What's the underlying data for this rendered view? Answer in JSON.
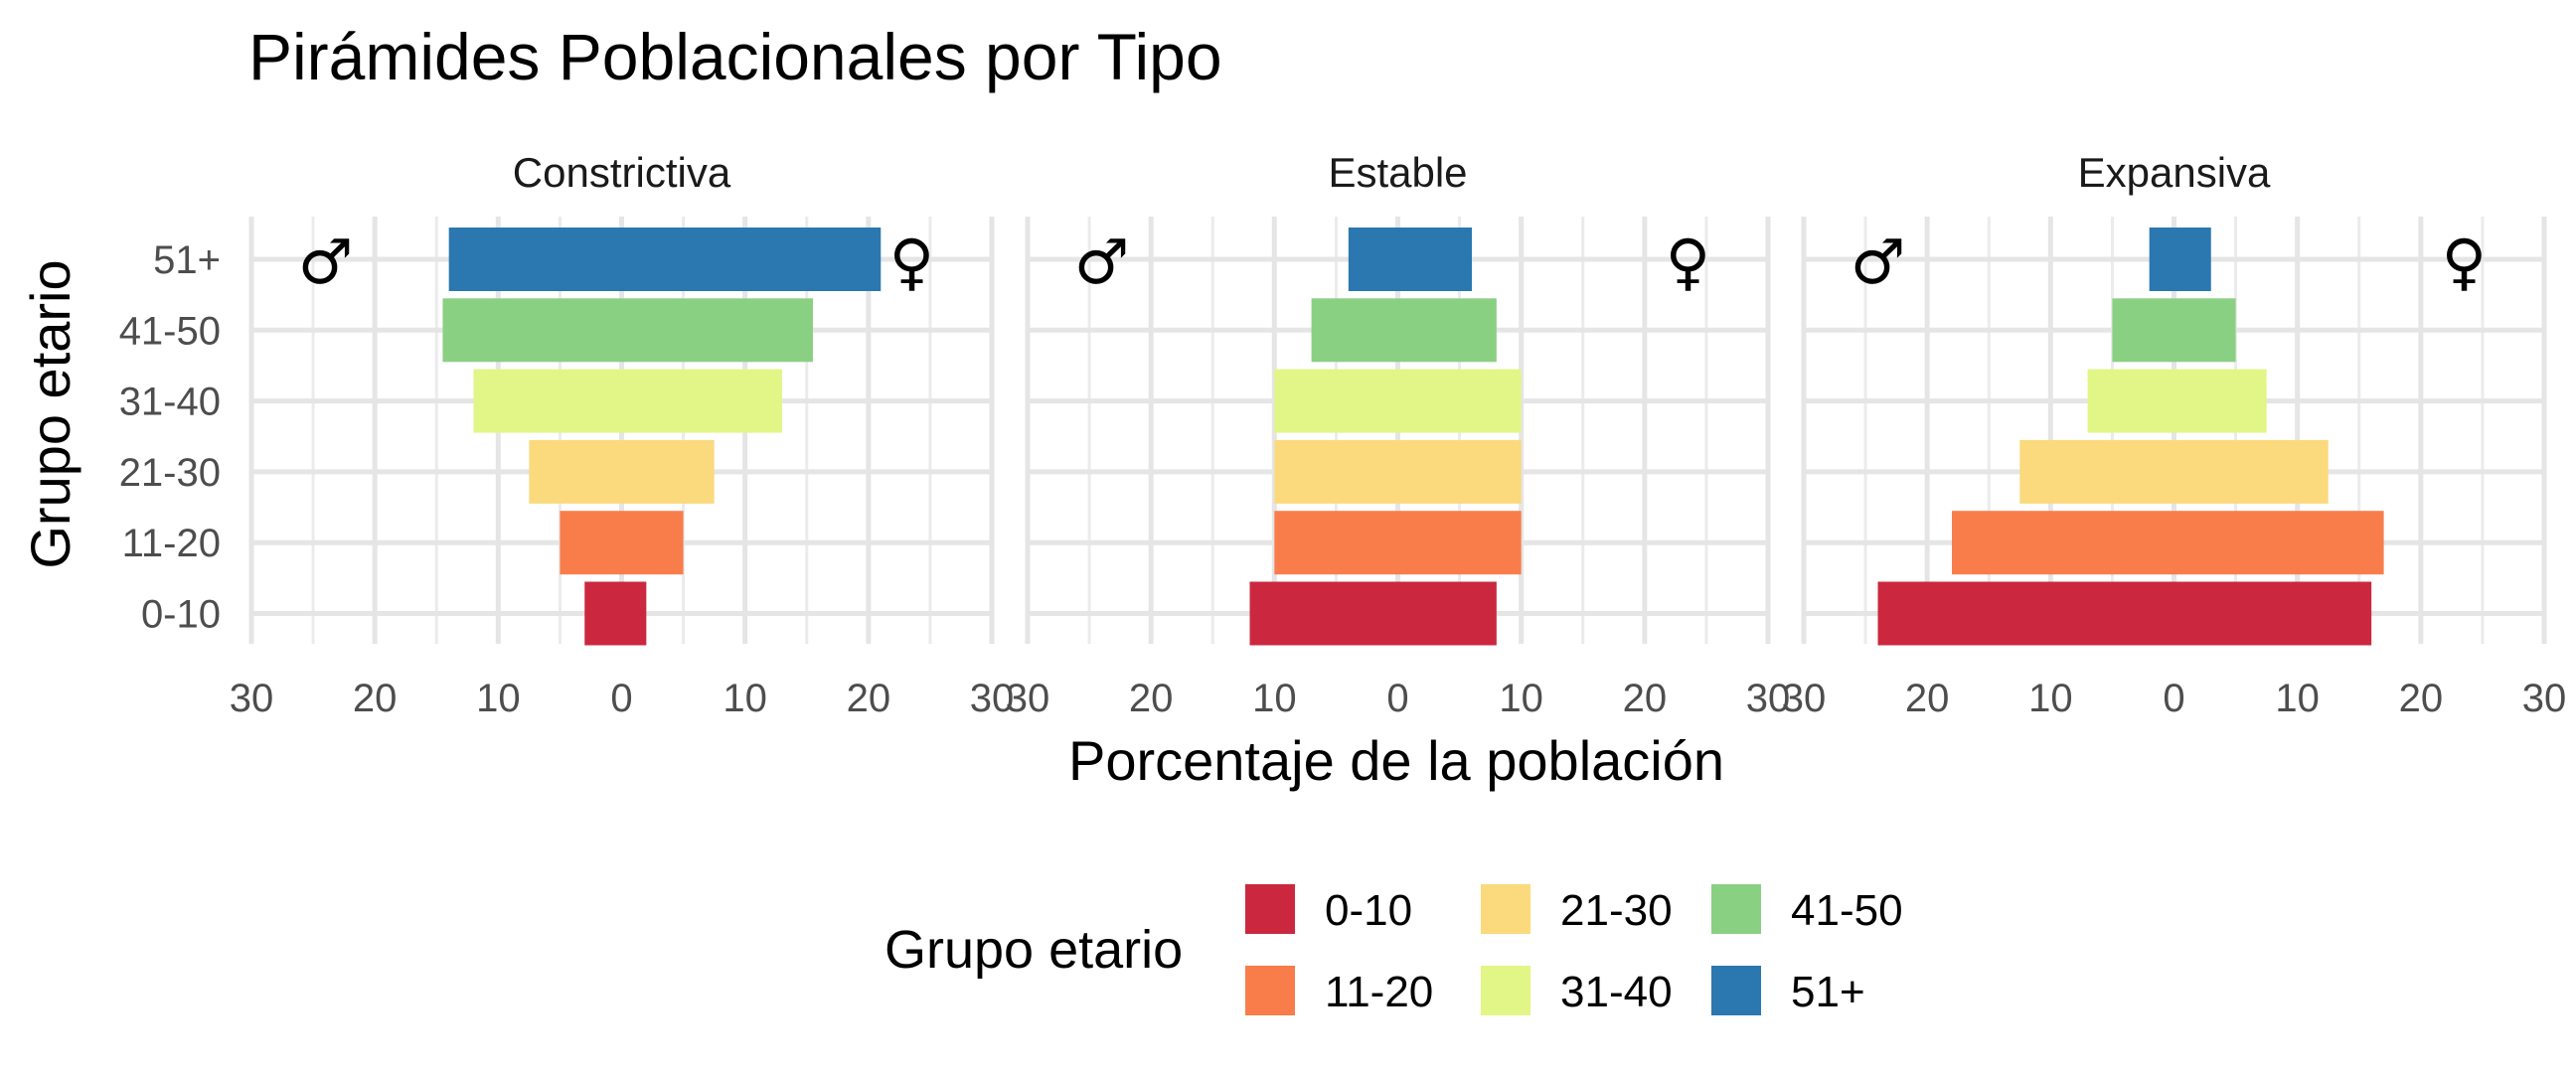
{
  "chart_data": {
    "type": "bar",
    "title": "Pirámides Poblacionales por Tipo",
    "xlabel": "Porcentaje de la población",
    "ylabel": "Grupo etario",
    "xlim": [
      -30,
      30
    ],
    "xticks": [
      -30,
      -20,
      -10,
      0,
      10,
      20,
      30
    ],
    "xtick_labels": [
      "30",
      "20",
      "10",
      "0",
      "10",
      "20",
      "30"
    ],
    "categories": [
      "0-10",
      "11-20",
      "21-30",
      "31-40",
      "41-50",
      "51+"
    ],
    "grid": true,
    "symbols": {
      "male": "♂",
      "female": "♀"
    },
    "colors": {
      "0-10": "#cb283f",
      "11-20": "#f87d4b",
      "21-30": "#fbd97d",
      "31-40": "#e1f686",
      "41-50": "#8ad083",
      "51+": "#2b77b0"
    },
    "panels": [
      {
        "name": "Constrictiva",
        "male": [
          -3,
          -5,
          -7.5,
          -12,
          -14.5,
          -14
        ],
        "female": [
          2,
          5,
          7.5,
          13,
          15.5,
          21
        ]
      },
      {
        "name": "Estable",
        "male": [
          -12,
          -10,
          -10,
          -10,
          -7,
          -4
        ],
        "female": [
          8,
          10,
          10,
          10,
          8,
          6
        ]
      },
      {
        "name": "Expansiva",
        "male": [
          -24,
          -18,
          -12.5,
          -7,
          -5,
          -2
        ],
        "female": [
          16,
          17,
          12.5,
          7.5,
          5,
          3
        ]
      }
    ],
    "legend": {
      "title": "Grupo etario",
      "position": "bottom",
      "items": [
        "0-10",
        "11-20",
        "21-30",
        "31-40",
        "41-50",
        "51+"
      ]
    }
  }
}
